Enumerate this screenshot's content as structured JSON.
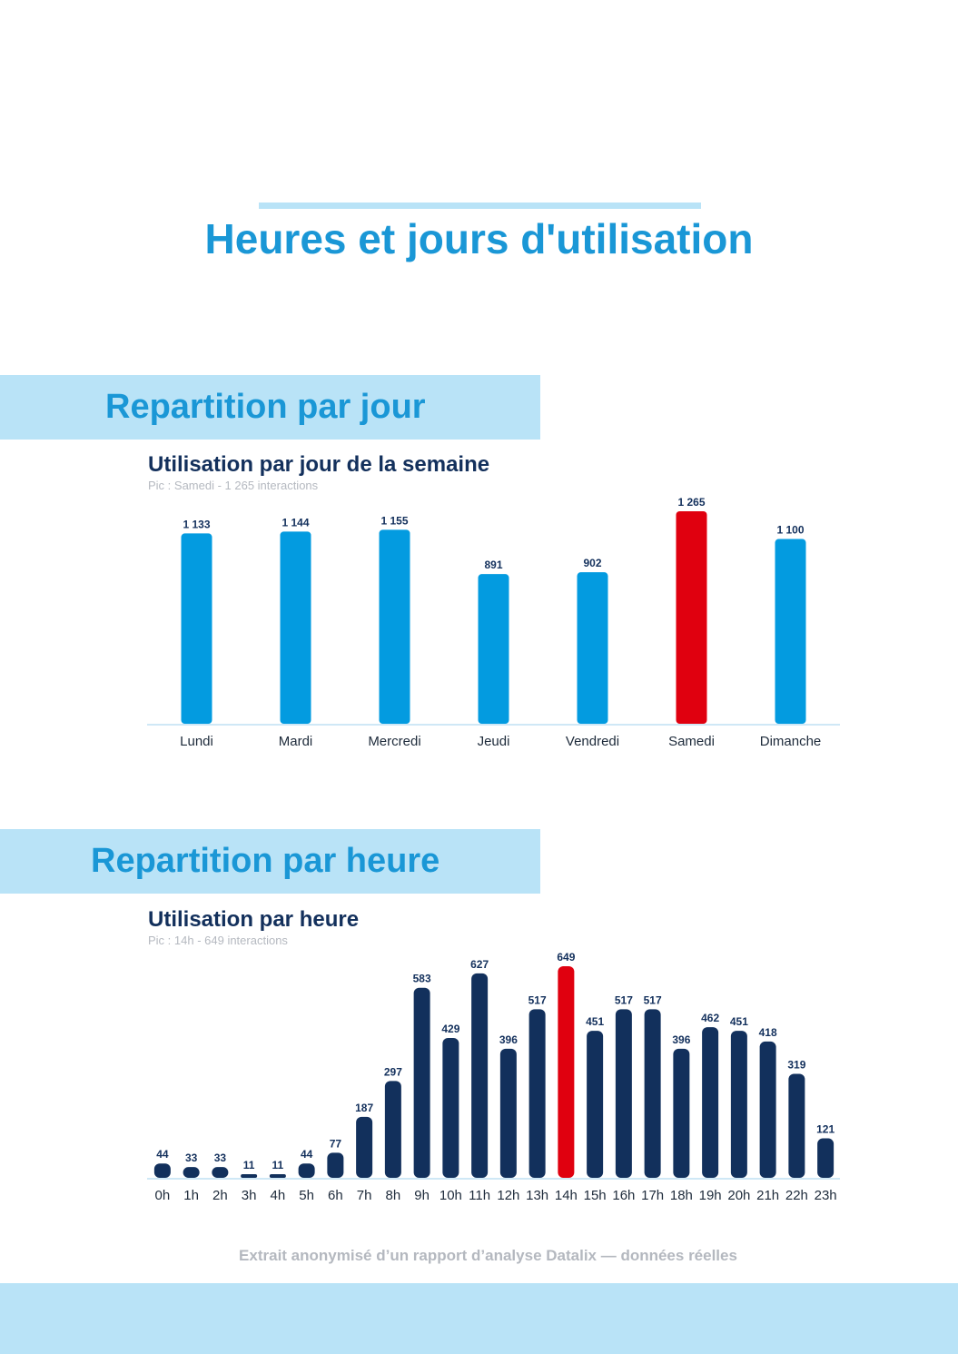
{
  "page": {
    "title": "Heures et jours d'utilisation",
    "footer": "Extrait anonymisé d’un rapport d’analyse Datalix — données réelles"
  },
  "sections": {
    "day": {
      "heading": "Repartition par jour"
    },
    "hour": {
      "heading": "Repartition par heure"
    }
  },
  "colors": {
    "accent": "#1a97d6",
    "band": "#b9e3f7",
    "day_bar": "#039be0",
    "hour_bar": "#12305c",
    "highlight": "#e0000f",
    "title": "#13305c"
  },
  "chart_data": [
    {
      "type": "bar",
      "title": "Utilisation par jour de la semaine",
      "subtitle": "Pic : Samedi - 1 265 interactions",
      "categories": [
        "Lundi",
        "Mardi",
        "Mercredi",
        "Jeudi",
        "Vendredi",
        "Samedi",
        "Dimanche"
      ],
      "values": [
        1133,
        1144,
        1155,
        891,
        902,
        1265,
        1100
      ],
      "value_labels": [
        "1 133",
        "1 144",
        "1 155",
        "891",
        "902",
        "1 265",
        "1 100"
      ],
      "highlight_index": 5,
      "ylim": [
        0,
        1265
      ],
      "grid": false
    },
    {
      "type": "bar",
      "title": "Utilisation par heure",
      "subtitle": "Pic : 14h - 649 interactions",
      "categories": [
        "0h",
        "1h",
        "2h",
        "3h",
        "4h",
        "5h",
        "6h",
        "7h",
        "8h",
        "9h",
        "10h",
        "11h",
        "12h",
        "13h",
        "14h",
        "15h",
        "16h",
        "17h",
        "18h",
        "19h",
        "20h",
        "21h",
        "22h",
        "23h"
      ],
      "values": [
        44,
        33,
        33,
        11,
        11,
        44,
        77,
        187,
        297,
        583,
        429,
        627,
        396,
        517,
        649,
        451,
        517,
        517,
        396,
        462,
        451,
        418,
        319,
        121
      ],
      "value_labels": [
        "44",
        "33",
        "33",
        "11",
        "11",
        "44",
        "77",
        "187",
        "297",
        "583",
        "429",
        "627",
        "396",
        "517",
        "649",
        "451",
        "517",
        "517",
        "396",
        "462",
        "451",
        "418",
        "319",
        "121"
      ],
      "highlight_index": 14,
      "ylim": [
        0,
        649
      ],
      "grid": false
    }
  ]
}
